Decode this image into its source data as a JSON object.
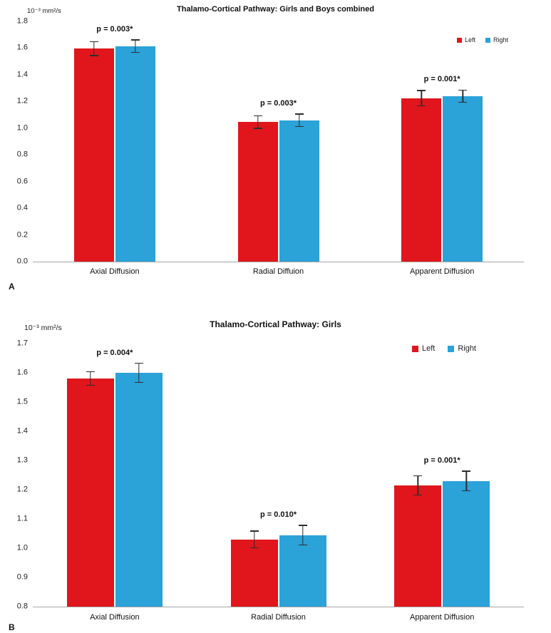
{
  "chart_data": [
    {
      "type": "bar",
      "panel_label": "A",
      "title": "Thalamo-Cortical Pathway: Girls and Boys combined",
      "y_units_label": "10⁻³ mm²/s",
      "categories": [
        "Axial Diffusion",
        "Radial Diffuion",
        "Apparent Diffusion"
      ],
      "series": [
        {
          "name": "Left",
          "color": "#e0161c",
          "values": [
            1.595,
            1.045,
            1.225
          ],
          "errors": [
            0.055,
            0.05,
            0.06
          ]
        },
        {
          "name": "Right",
          "color": "#2ba2d8",
          "values": [
            1.615,
            1.06,
            1.24
          ],
          "errors": [
            0.05,
            0.05,
            0.05
          ]
        }
      ],
      "annotations": [
        "p = 0.003*",
        "p = 0.003*",
        "p = 0.001*"
      ],
      "ylim": [
        0.0,
        1.8
      ],
      "ytick_step": 0.2,
      "grid": false,
      "legend_position": "top-right",
      "error_bar_color": "#2e2e2e"
    },
    {
      "type": "bar",
      "panel_label": "B",
      "title": "Thalamo-Cortical Pathway: Girls",
      "y_units_label": "10⁻³ mm²/s",
      "categories": [
        "Axial Diffusion",
        "Radial Diffusion",
        "Apparent Diffusion"
      ],
      "series": [
        {
          "name": "Left",
          "color": "#e0161c",
          "values": [
            1.58,
            1.03,
            1.215
          ],
          "errors": [
            0.025,
            0.03,
            0.035
          ]
        },
        {
          "name": "Right",
          "color": "#2ba2d8",
          "values": [
            1.6,
            1.045,
            1.23
          ],
          "errors": [
            0.035,
            0.035,
            0.035
          ]
        }
      ],
      "annotations": [
        "p = 0.004*",
        "p = 0.010*",
        "p = 0.001*"
      ],
      "ylim": [
        0.8,
        1.7
      ],
      "ytick_step": 0.1,
      "grid": false,
      "legend_position": "top-right",
      "error_bar_color": "#2e2e2e"
    }
  ]
}
